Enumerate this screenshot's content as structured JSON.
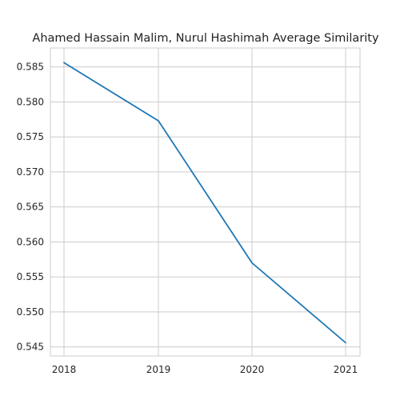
{
  "chart_data": {
    "type": "line",
    "title": "Ahamed Hassain Malim, Nurul Hashimah Average Similarity",
    "xlabel": "",
    "ylabel": "",
    "x": [
      "2018",
      "2019",
      "2020",
      "2021"
    ],
    "y": [
      0.5856,
      0.5773,
      0.557,
      0.5456
    ],
    "xticks": [
      "2018",
      "2019",
      "2020",
      "2021"
    ],
    "yticks": [
      "0.545",
      "0.550",
      "0.555",
      "0.560",
      "0.565",
      "0.570",
      "0.575",
      "0.580",
      "0.585"
    ],
    "ylim": [
      0.5437,
      0.5877
    ],
    "grid": true,
    "color": "#1f77b4"
  }
}
